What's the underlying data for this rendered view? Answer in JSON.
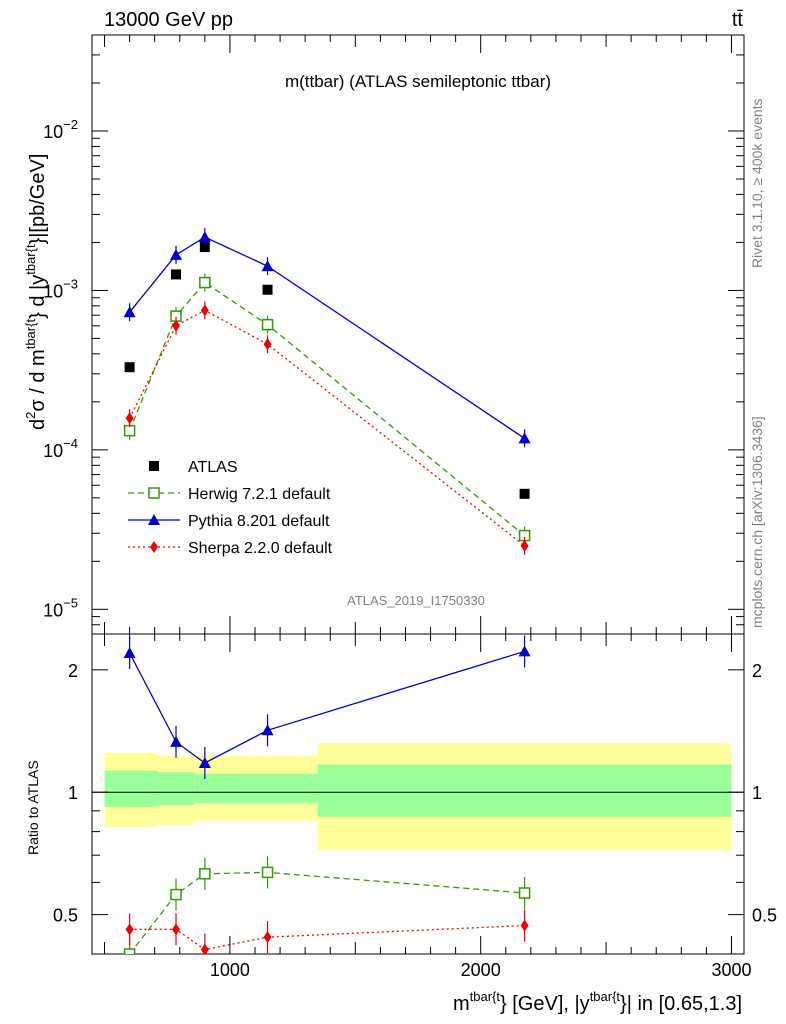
{
  "header": {
    "left": "13000 GeV pp",
    "right": "tt̄"
  },
  "side_labels": {
    "rivet": "Rivet 3.1.10, ≥ 400k events",
    "mcplots": "mcplots.cern.ch [arXiv:1306.3436]"
  },
  "chart_data": [
    {
      "type": "scatter",
      "title": "m(ttbar) (ATLAS semileptonic ttbar)",
      "analysis_label": "ATLAS_2019_I1750330",
      "ylabel_parts": [
        "d",
        "2",
        "σ / d m",
        "tbar{t",
        "} d |y",
        "tbar{t",
        "}|[pb/GeV]"
      ],
      "yscale": "log",
      "ylim": [
        7e-06,
        0.04
      ],
      "xlim": [
        450,
        3050
      ],
      "y_ticks": [
        {
          "value": 1e-05,
          "base": "10",
          "exp": "−5"
        },
        {
          "value": 0.0001,
          "base": "10",
          "exp": "−4"
        },
        {
          "value": 0.001,
          "base": "10",
          "exp": "−3"
        },
        {
          "value": 0.01,
          "base": "10",
          "exp": "−2"
        }
      ],
      "legend_position": "lower-left",
      "series": [
        {
          "name": "ATLAS",
          "color": "#000000",
          "marker": "square",
          "x": [
            600,
            785,
            900,
            1150,
            2175
          ],
          "y": [
            0.00033,
            0.00126,
            0.00187,
            0.00101,
            5.3e-05
          ]
        },
        {
          "name": "Herwig 7.2.1 default",
          "color": "#339900",
          "marker": "open-square",
          "line": "dashed",
          "x": [
            600,
            785,
            900,
            1150,
            2175
          ],
          "y": [
            0.000132,
            0.00069,
            0.00112,
            0.00061,
            2.9e-05
          ]
        },
        {
          "name": "Pythia 8.201 default",
          "color": "#0000cc",
          "marker": "triangle",
          "line": "solid",
          "x": [
            600,
            785,
            900,
            1150,
            2175
          ],
          "y": [
            0.00073,
            0.00167,
            0.00216,
            0.00142,
            0.000118
          ]
        },
        {
          "name": "Sherpa 2.2.0 default",
          "color": "#ee0000",
          "marker": "diamond",
          "line": "dotted",
          "x": [
            600,
            785,
            900,
            1150,
            2175
          ],
          "y": [
            0.000158,
            0.0006,
            0.00075,
            0.00046,
            2.5e-05
          ]
        }
      ]
    },
    {
      "type": "line",
      "ylabel": "Ratio to ATLAS",
      "xlabel_parts": [
        "m",
        "tbar{t",
        "} [GeV], |y",
        "tbar{t",
        "}| in [0.65,1.3]"
      ],
      "yscale": "log",
      "ylim": [
        0.4,
        2.45
      ],
      "xlim": [
        450,
        3050
      ],
      "x_ticks": [
        1000,
        2000,
        3000
      ],
      "y_ticks": [
        0.5,
        1,
        2
      ],
      "bands": {
        "edges": [
          500,
          710,
          860,
          1350,
          3000
        ],
        "outer_low": [
          0.82,
          0.83,
          0.85,
          0.72
        ],
        "outer_high": [
          1.25,
          1.23,
          1.23,
          1.32
        ],
        "inner_low": [
          0.92,
          0.93,
          0.94,
          0.87
        ],
        "inner_high": [
          1.13,
          1.12,
          1.11,
          1.17
        ],
        "outer_color": "#ffff99",
        "inner_color": "#99ff99"
      },
      "series": [
        {
          "name": "Herwig 7.2.1 default",
          "color": "#339900",
          "x": [
            600,
            785,
            900,
            1150,
            2175
          ],
          "y": [
            0.4,
            0.56,
            0.63,
            0.635,
            0.565
          ]
        },
        {
          "name": "Pythia 8.201 default",
          "color": "#0000cc",
          "x": [
            600,
            785,
            900,
            1150,
            2175
          ],
          "y": [
            2.2,
            1.33,
            1.18,
            1.42,
            2.22
          ]
        },
        {
          "name": "Sherpa 2.2.0 default",
          "color": "#ee0000",
          "x": [
            600,
            785,
            900,
            1150,
            2175
          ],
          "y": [
            0.46,
            0.46,
            0.41,
            0.44,
            0.47
          ]
        }
      ]
    }
  ]
}
